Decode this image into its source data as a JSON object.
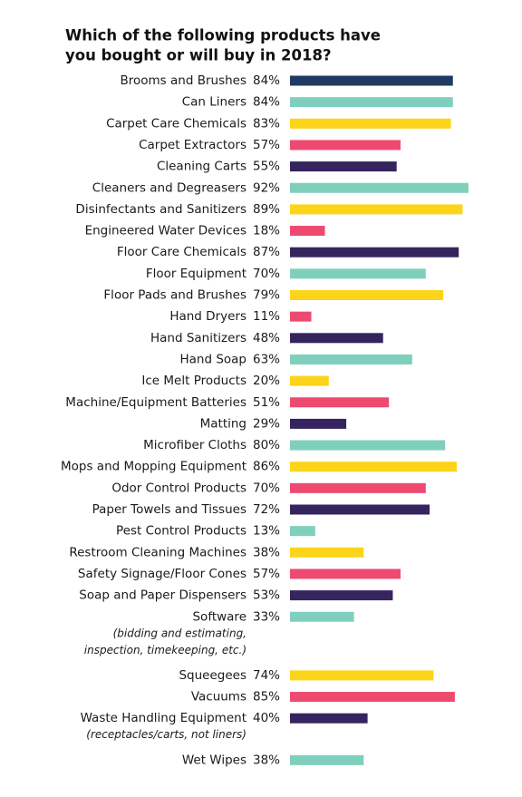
{
  "chart_data": {
    "type": "bar",
    "orientation": "horizontal",
    "title": [
      "Which of the following products have",
      "you bought or will buy in 2018?"
    ],
    "categories": [
      "Brooms and Brushes",
      "Can Liners",
      "Carpet Care Chemicals",
      "Carpet Extractors",
      "Cleaning Carts",
      "Cleaners and Degreasers",
      "Disinfectants and Sanitizers",
      "Engineered Water Devices",
      "Floor Care Chemicals",
      "Floor Equipment",
      "Floor Pads and Brushes",
      "Hand Dryers",
      "Hand Sanitizers",
      "Hand Soap",
      "Ice Melt Products",
      "Machine/Equipment Batteries",
      "Matting",
      "Microfiber Cloths",
      "Mops and Mopping Equipment",
      "Odor Control Products",
      "Paper Towels and Tissues",
      "Pest Control Products",
      "Restroom Cleaning Machines",
      "Safety Signage/Floor Cones",
      "Soap and Paper Dispensers",
      "Software",
      "Squeegees",
      "Vacuums",
      "Waste Handling Equipment",
      "Wet Wipes"
    ],
    "category_notes": [
      null,
      null,
      null,
      null,
      null,
      null,
      null,
      null,
      null,
      null,
      null,
      null,
      null,
      null,
      null,
      null,
      null,
      null,
      null,
      null,
      null,
      null,
      null,
      null,
      null,
      [
        "(bidding and estimating,",
        "inspection, timekeeping, etc.)"
      ],
      null,
      null,
      [
        "(receptacles/carts, not liners)"
      ],
      null
    ],
    "values": [
      84,
      84,
      83,
      57,
      55,
      92,
      89,
      18,
      87,
      70,
      79,
      11,
      48,
      63,
      20,
      51,
      29,
      80,
      86,
      70,
      72,
      13,
      38,
      57,
      53,
      33,
      74,
      85,
      40,
      38
    ],
    "value_labels": [
      "84%",
      "84%",
      "83%",
      "57%",
      "55%",
      "92%",
      "89%",
      "18%",
      "87%",
      "70%",
      "79%",
      "11%",
      "48%",
      "63%",
      "20%",
      "51%",
      "29%",
      "80%",
      "86%",
      "70%",
      "72%",
      "13%",
      "38%",
      "57%",
      "53%",
      "33%",
      "74%",
      "85%",
      "40%",
      "38%"
    ],
    "colors": [
      "#1f3b63",
      "#7fcfbd",
      "#fcd419",
      "#ee4a70",
      "#35245e",
      "#7fcfbd",
      "#fcd419",
      "#ee4a70",
      "#35245e",
      "#7fcfbd",
      "#fcd419",
      "#ee4a70",
      "#35245e",
      "#7fcfbd",
      "#fcd419",
      "#ee4a70",
      "#35245e",
      "#7fcfbd",
      "#fcd419",
      "#ee4a70",
      "#35245e",
      "#7fcfbd",
      "#fcd419",
      "#ee4a70",
      "#35245e",
      "#7fcfbd",
      "#fcd419",
      "#ee4a70",
      "#35245e",
      "#7fcfbd"
    ]
  }
}
